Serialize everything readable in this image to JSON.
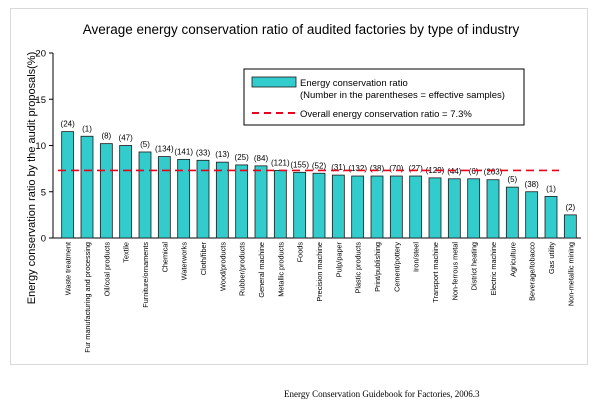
{
  "chart_data": {
    "type": "bar",
    "title": "Average energy conservation ratio of audited factories by type of industry",
    "ylabel": "Energy conservation ratio by the audit proposals(%)",
    "xlabel": "",
    "ylim": [
      0,
      20
    ],
    "yticks": [
      0,
      5,
      10,
      15,
      20
    ],
    "reference_value": 7.3,
    "legend": {
      "position": "top-right",
      "bar_label_line1": "Energy conservation ratio",
      "bar_label_line2": "(Number in the parentheses = effective samples)",
      "line_label": "Overall energy conservation ratio = 7.3%"
    },
    "categories": [
      "Waste treatment",
      "Fur manufacturing and processing",
      "Oil/coal products",
      "Textile",
      "Furniture/ornaments",
      "Chemical",
      "Waterworks",
      "Cloth/fiber",
      "Wood/products",
      "Rubber/products",
      "General machine",
      "Metallic products",
      "Foods",
      "Precision machine",
      "Pulp/paper",
      "Plastic products",
      "Print/publishing",
      "Cement/pottery",
      "Iron/steel",
      "Transport machine",
      "Non-ferrous metal",
      "District heating",
      "Electric machine",
      "Agriculture",
      "Beverage/tobacco",
      "Gas utility",
      "Non-metallic mining"
    ],
    "samples": [
      "(24)",
      "(1)",
      "(8)",
      "(47)",
      "(5)",
      "(134)",
      "(141)",
      "(33)",
      "(13)",
      "(25)",
      "(84)",
      "(121)",
      "(155)",
      "(52)",
      "(31)",
      "(132)",
      "(38)",
      "(70)",
      "(27)",
      "(129)",
      "(44)",
      "(6)",
      "(263)",
      "(5)",
      "(38)",
      "(1)",
      "(2)"
    ],
    "values": [
      11.5,
      11.0,
      10.2,
      10.0,
      9.3,
      8.8,
      8.5,
      8.4,
      8.2,
      7.9,
      7.8,
      7.3,
      7.1,
      7.0,
      6.8,
      6.7,
      6.7,
      6.7,
      6.7,
      6.5,
      6.4,
      6.4,
      6.3,
      5.5,
      5.0,
      4.5,
      2.5
    ]
  },
  "source": "Energy Conservation Guidebook for Factories, 2006.3",
  "colors": {
    "bar_fill": "#33cccc",
    "bar_stroke": "#1a1a1a",
    "reference_line": "#e8001c",
    "axis": "#000000",
    "legend_border": "#000000"
  }
}
